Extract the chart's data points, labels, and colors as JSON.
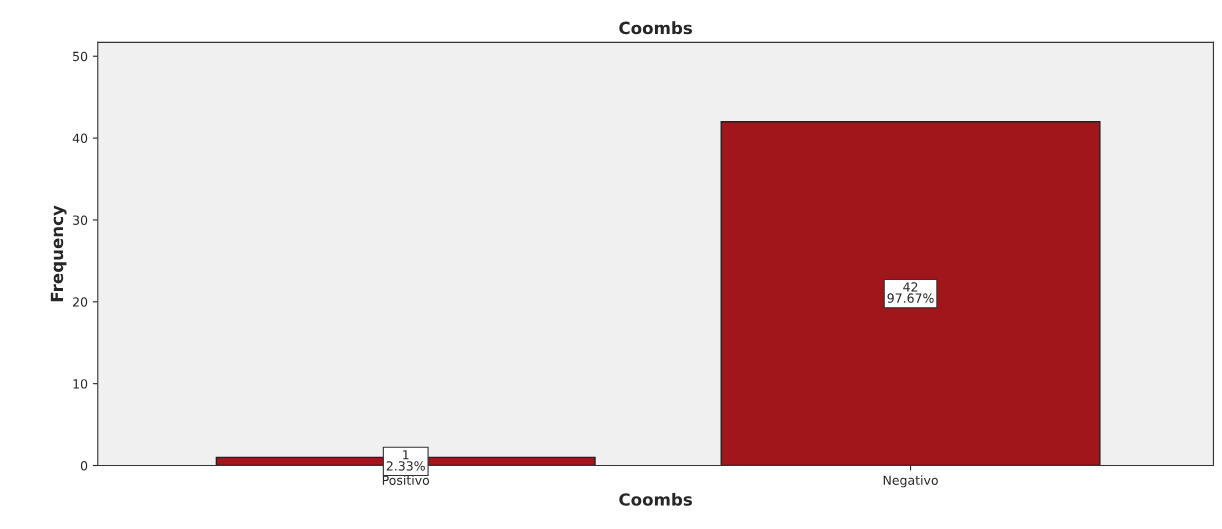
{
  "chart_data": {
    "type": "bar",
    "title": "Coombs",
    "xlabel": "Coombs",
    "ylabel": "Frequency",
    "categories": [
      "Positivo",
      "Negativo"
    ],
    "values": [
      1,
      42
    ],
    "value_labels": [
      "1\n2.33%",
      "42\n97.67%"
    ],
    "color": "#a0161a",
    "ylim": [
      0,
      51.7
    ],
    "yticks": [
      0,
      10,
      20,
      30,
      40,
      50
    ],
    "grid": false
  }
}
